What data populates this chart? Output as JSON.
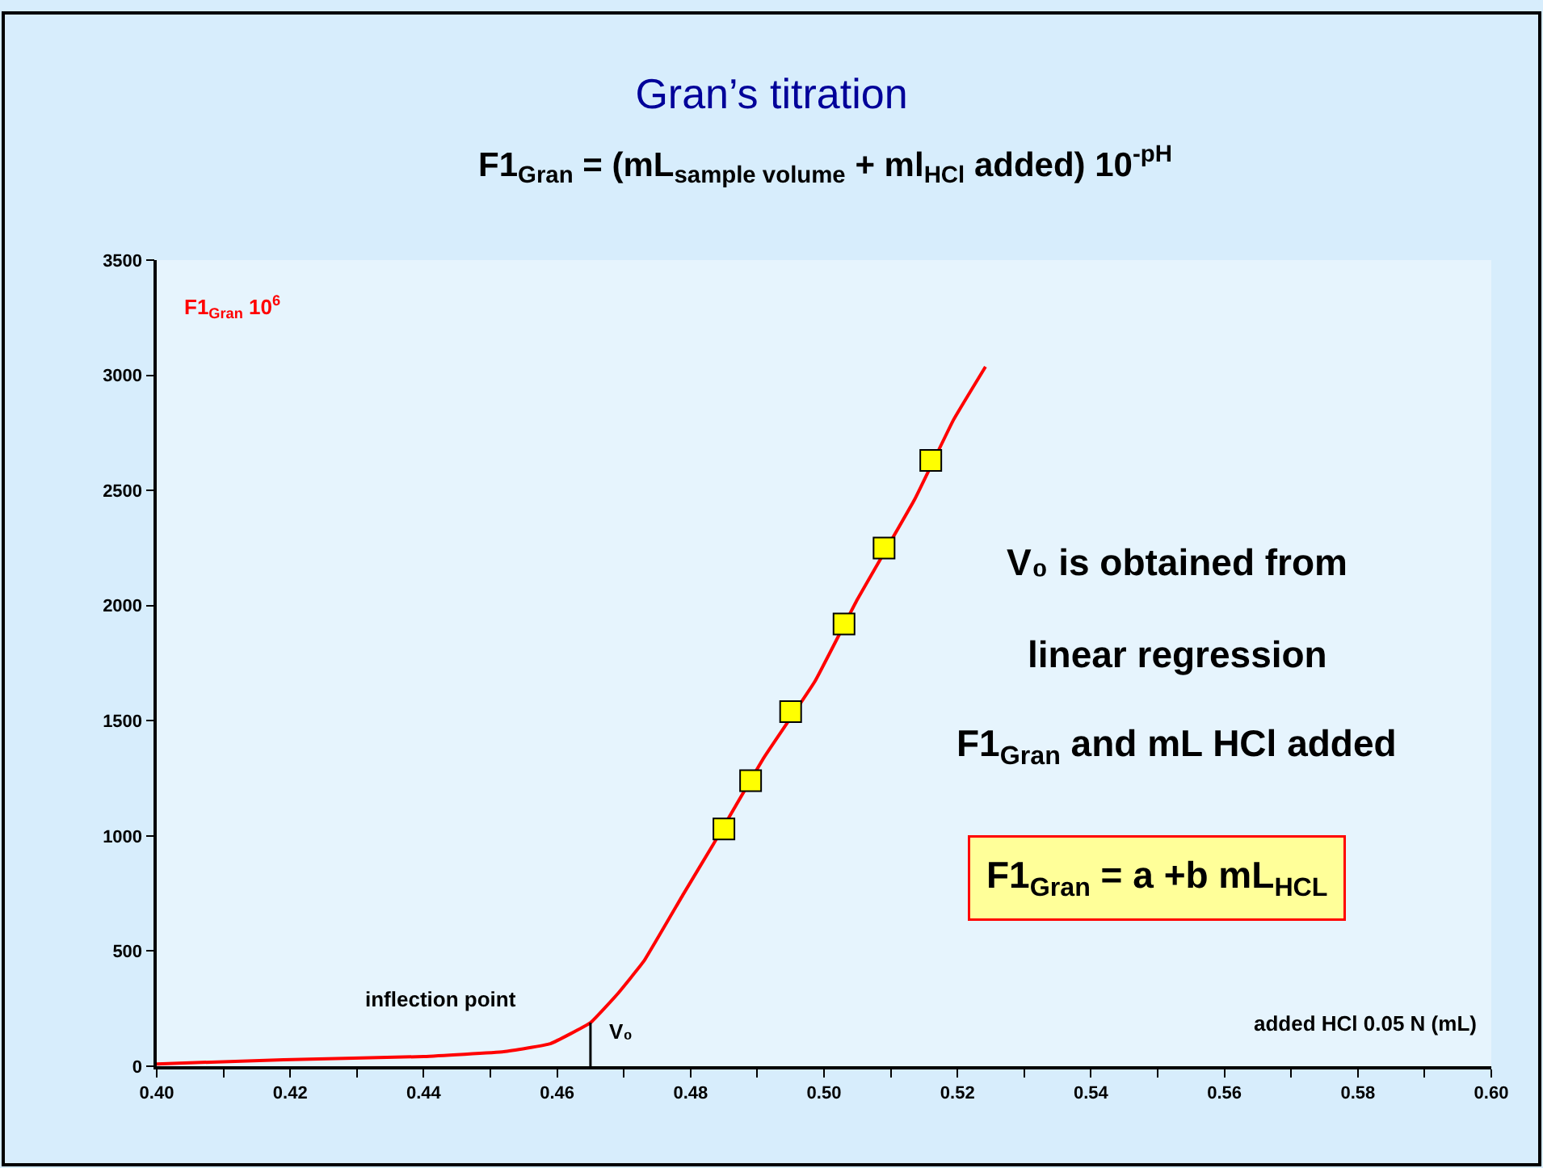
{
  "chart_data": {
    "type": "line",
    "title": "Gran’s titration",
    "subtitle": "F1$_{Gran}$ = (mL$_{sample volume}$ + ml$_{HCl}$ added) 10$^{-pH}$",
    "xlabel": "added HCl 0.05 N (mL)",
    "ylabel": "F1$_{Gran}$ 10$^{6}$",
    "series": [
      {
        "color": "#ff0000",
        "marker": "none",
        "x": [
          0.4,
          0.419,
          0.44,
          0.452,
          0.459,
          0.465,
          0.469,
          0.473,
          0.479,
          0.4835,
          0.491,
          0.4986,
          0.505,
          0.5136,
          0.5194,
          0.5242
        ],
        "values": [
          10,
          28,
          42,
          63,
          98,
          189,
          312,
          456,
          751,
          968,
          1340,
          1669,
          2027,
          2462,
          2806,
          3037
        ]
      },
      {
        "type": "scatter",
        "color": "#ffff00",
        "marker": "square",
        "x": [
          0.485,
          0.489,
          0.495,
          0.503,
          0.509,
          0.516
        ],
        "values": [
          1030,
          1240,
          1540,
          1920,
          2250,
          2630
        ]
      }
    ],
    "xlim": [
      0.4,
      0.6
    ],
    "xticks": [
      {
        "value": 0.4,
        "label": "0.40"
      },
      {
        "value": 0.41,
        "label": null
      },
      {
        "value": 0.42,
        "label": "0.42"
      },
      {
        "value": 0.43,
        "label": null
      },
      {
        "value": 0.44,
        "label": "0.44"
      },
      {
        "value": 0.45,
        "label": null
      },
      {
        "value": 0.46,
        "label": "0.46"
      },
      {
        "value": 0.47,
        "label": null
      },
      {
        "value": 0.48,
        "label": "0.48"
      },
      {
        "value": 0.49,
        "label": null
      },
      {
        "value": 0.5,
        "label": "0.50"
      },
      {
        "value": 0.51,
        "label": null
      },
      {
        "value": 0.52,
        "label": "0.52"
      },
      {
        "value": 0.53,
        "label": null
      },
      {
        "value": 0.54,
        "label": "0.54"
      },
      {
        "value": 0.55,
        "label": null
      },
      {
        "value": 0.56,
        "label": "0.56"
      },
      {
        "value": 0.57,
        "label": null
      },
      {
        "value": 0.58,
        "label": "0.58"
      },
      {
        "value": 0.59,
        "label": null
      },
      {
        "value": 0.6,
        "label": "0.60"
      }
    ],
    "ylim": [
      0,
      3500
    ],
    "yticks": [
      0,
      500,
      1000,
      1500,
      2000,
      2500,
      3000,
      3500
    ],
    "ref_lines": [
      {
        "axis": "x",
        "value": 0.465,
        "label": "V₀",
        "color": "#000000"
      }
    ],
    "annotations": [
      "inflection point",
      "V₀ is obtained from",
      "linear regression",
      "F1$_{Gran}$ and mL HCl added",
      "F1$_{Gran}$ = a +b mL$_{HCL}$"
    ],
    "grid": false,
    "legend": false
  }
}
